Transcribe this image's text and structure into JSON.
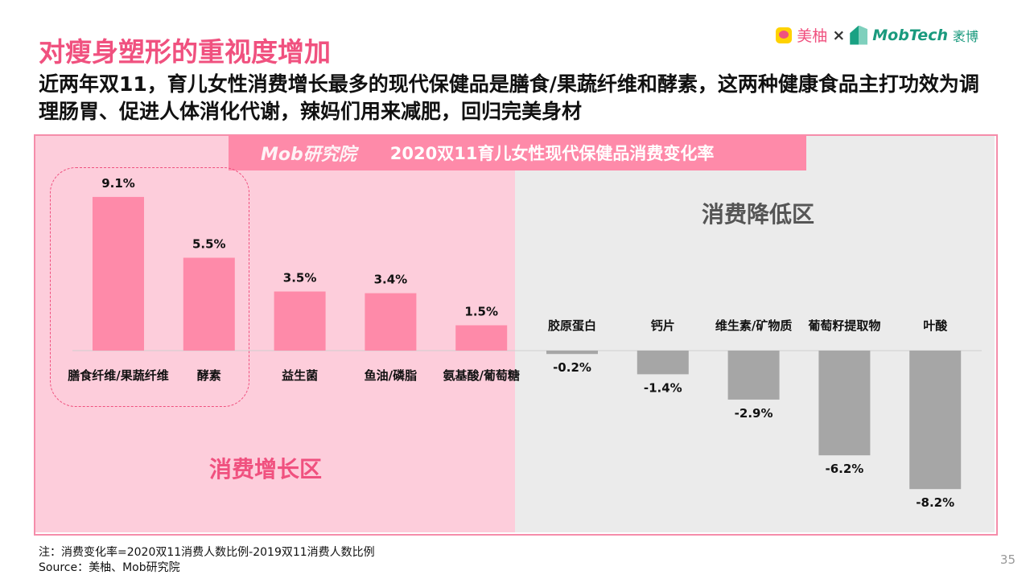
{
  "header": {
    "title": "对瘦身塑形的重视度增加",
    "subtitle": "近两年双11，育儿女性消费增长最多的现代保健品是膳食/果蔬纤维和酵素，这两种健康食品主打功效为调理肠胃、促进人体消化代谢，辣妈们用来减肥，回归完美身材"
  },
  "logos": {
    "meiyou": "美柚",
    "times": "×",
    "mobtech": "MobTech",
    "mobtech_cn": "袤博",
    "mob_institute": "Mob研究院"
  },
  "zones": {
    "increase": "消费增长区",
    "decrease": "消费降低区"
  },
  "colors": {
    "positive": "#fe8aa9",
    "negative": "#a6a6a6",
    "accent": "#f0517f"
  },
  "chart_data": {
    "type": "bar",
    "title": "2020双11育儿女性现代保健品消费变化率",
    "categories": [
      "膳食纤维/果蔬纤维",
      "酵素",
      "益生菌",
      "鱼油/磷脂",
      "氨基酸/葡萄糖",
      "胶原蛋白",
      "钙片",
      "维生素/矿物质",
      "葡萄籽提取物",
      "叶酸"
    ],
    "values": [
      9.1,
      5.5,
      3.5,
      3.4,
      1.5,
      -0.2,
      -1.4,
      -2.9,
      -6.2,
      -8.2
    ],
    "labels": [
      "9.1%",
      "5.5%",
      "3.5%",
      "3.4%",
      "1.5%",
      "-0.2%",
      "-1.4%",
      "-2.9%",
      "-6.2%",
      "-8.2%"
    ],
    "unit": "%",
    "ylim": [
      -8.2,
      9.1
    ],
    "grid": false
  },
  "footer": {
    "note": "注：消费变化率=2020双11消费人数比例-2019双11消费人数比例",
    "source": "Source：美柚、Mob研究院",
    "page": "35"
  }
}
